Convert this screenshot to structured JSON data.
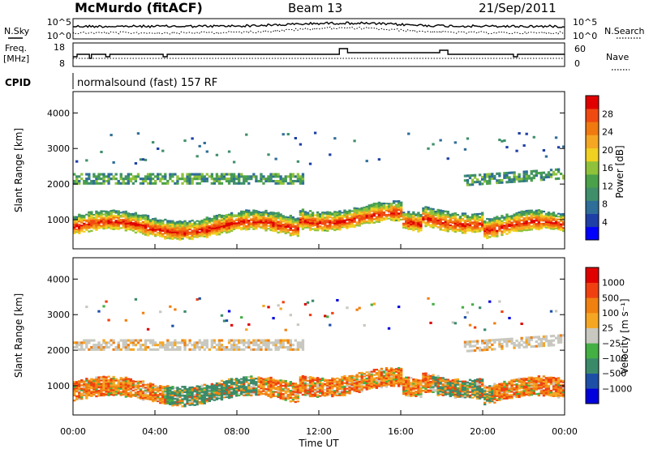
{
  "header": {
    "station": "McMurdo (fitACF)",
    "beam": "Beam 13",
    "date": "21/Sep/2011"
  },
  "noise_panel": {
    "left_label": "N.Sky",
    "left_ticks": [
      "10^5",
      "10^0"
    ],
    "right_ticks": [
      "10^5",
      "10^0"
    ],
    "right_label": "N.Search"
  },
  "freq_panel": {
    "left_label_line1": "Freq.",
    "left_label_line2": "[MHz]",
    "left_ticks": [
      "18",
      "8"
    ],
    "right_ticks": [
      "60",
      "0"
    ],
    "right_label": "Nave"
  },
  "cpid_panel": {
    "label": "CPID",
    "text": "normalsound (fast) 157 RF"
  },
  "colors": {
    "power": [
      "#0000ff",
      "#1e3fa6",
      "#2e6e98",
      "#3f8f6a",
      "#4aa14a",
      "#8fc23a",
      "#f0d020",
      "#f5a623",
      "#f07a10",
      "#f04a10",
      "#e00000"
    ],
    "velocity": [
      "#0000dd",
      "#1e4fa6",
      "#3a8a6a",
      "#44b044",
      "#c8c8c0",
      "#f5a623",
      "#f08010",
      "#f04010",
      "#e00000"
    ]
  },
  "chart_data": [
    {
      "type": "heatmap",
      "panel": "power",
      "ylabel": "Slant Range [km]",
      "yticks": [
        "4000",
        "3000",
        "2000",
        "1000"
      ],
      "ylim": [
        180,
        4600
      ],
      "xlim": [
        0,
        24
      ],
      "colorbar_label": "Power [dB]",
      "colorbar_ticks": [
        "28",
        "24",
        "20",
        "16",
        "12",
        "8",
        "4"
      ],
      "bands": [
        {
          "name": "main",
          "center_start_km": 800,
          "center_end_km": 900,
          "width_km": 500
        },
        {
          "name": "upper",
          "center_km": 2150,
          "width_km": 300,
          "x_range": [
            0.3,
            11
          ]
        }
      ]
    },
    {
      "type": "heatmap",
      "panel": "velocity",
      "ylabel": "Slant Range [km]",
      "yticks": [
        "4000",
        "3000",
        "2000",
        "1000"
      ],
      "ylim": [
        180,
        4600
      ],
      "xlim": [
        0,
        24
      ],
      "xlabel": "Time UT",
      "xticks": [
        "00:00",
        "04:00",
        "08:00",
        "12:00",
        "16:00",
        "20:00",
        "00:00"
      ],
      "colorbar_label": "Velocity [m s⁻¹]",
      "colorbar_ticks": [
        "1000",
        "500",
        "100",
        "25",
        "−25",
        "−100",
        "−500",
        "−1000"
      ]
    }
  ]
}
